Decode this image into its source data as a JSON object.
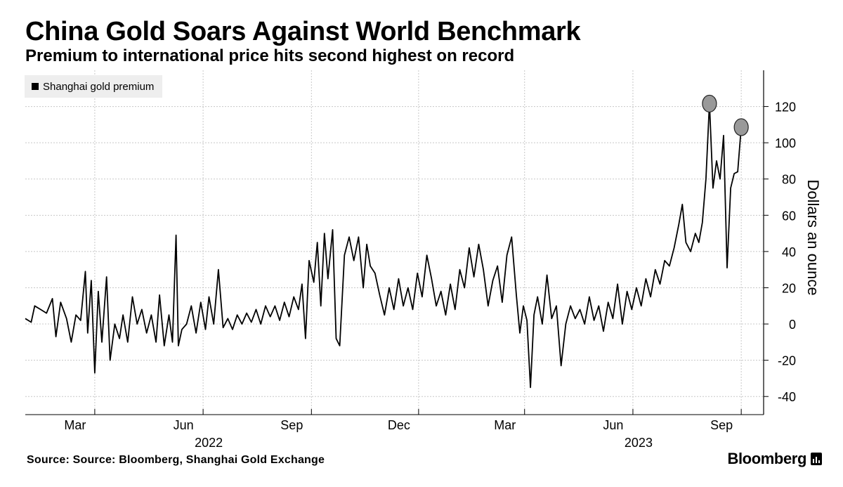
{
  "header": {
    "title": "China Gold Soars Against World Benchmark",
    "subtitle": "Premium to international price hits second highest on record"
  },
  "footer": {
    "source": "Source: Source: Bloomberg, Shanghai Gold Exchange",
    "brand": "Bloomberg"
  },
  "colors": {
    "line": "#000000",
    "grid": "#c8c8c8",
    "highlight_fill": "#999999",
    "legend_bg": "#eeeeee"
  },
  "chart_data": {
    "type": "line",
    "title": "China Gold Soars Against World Benchmark",
    "subtitle": "Premium to international price hits second highest on record",
    "ylabel": "Dollars an ounce",
    "y_axis_side": "right",
    "ylim": [
      -50,
      140
    ],
    "yticks": [
      -40,
      -20,
      0,
      20,
      40,
      60,
      80,
      100,
      120
    ],
    "xlim": [
      "2022-01-01",
      "2023-09-20"
    ],
    "x_month_ticks": [
      {
        "date": "2022-03-01",
        "label": "Mar"
      },
      {
        "date": "2022-06-01",
        "label": "Jun"
      },
      {
        "date": "2022-09-01",
        "label": "Sep"
      },
      {
        "date": "2022-12-01",
        "label": "Dec"
      },
      {
        "date": "2023-03-01",
        "label": "Mar"
      },
      {
        "date": "2023-06-01",
        "label": "Jun"
      },
      {
        "date": "2023-09-01",
        "label": "Sep"
      }
    ],
    "x_year_labels": [
      {
        "date": "2022-06-01",
        "label": "2022"
      },
      {
        "date": "2023-06-01",
        "label": "2023"
      }
    ],
    "grid": true,
    "legend": {
      "position": "top-left",
      "entries": [
        "Shanghai gold premium"
      ]
    },
    "series": [
      {
        "name": "Shanghai gold premium",
        "color": "#000000",
        "points": [
          [
            "2022-01-01",
            3
          ],
          [
            "2022-01-06",
            1
          ],
          [
            "2022-01-09",
            10
          ],
          [
            "2022-01-14",
            8
          ],
          [
            "2022-01-19",
            6
          ],
          [
            "2022-01-24",
            14
          ],
          [
            "2022-01-27",
            -7
          ],
          [
            "2022-01-31",
            12
          ],
          [
            "2022-02-05",
            3
          ],
          [
            "2022-02-09",
            -10
          ],
          [
            "2022-02-13",
            5
          ],
          [
            "2022-02-17",
            2
          ],
          [
            "2022-02-21",
            29
          ],
          [
            "2022-02-23",
            -5
          ],
          [
            "2022-02-26",
            24
          ],
          [
            "2022-03-01",
            -27
          ],
          [
            "2022-03-04",
            18
          ],
          [
            "2022-03-07",
            -10
          ],
          [
            "2022-03-11",
            26
          ],
          [
            "2022-03-14",
            -20
          ],
          [
            "2022-03-18",
            0
          ],
          [
            "2022-03-22",
            -8
          ],
          [
            "2022-03-25",
            5
          ],
          [
            "2022-03-29",
            -10
          ],
          [
            "2022-04-02",
            15
          ],
          [
            "2022-04-06",
            0
          ],
          [
            "2022-04-10",
            8
          ],
          [
            "2022-04-14",
            -5
          ],
          [
            "2022-04-18",
            5
          ],
          [
            "2022-04-22",
            -10
          ],
          [
            "2022-04-25",
            16
          ],
          [
            "2022-04-29",
            -12
          ],
          [
            "2022-05-03",
            5
          ],
          [
            "2022-05-06",
            -10
          ],
          [
            "2022-05-09",
            49
          ],
          [
            "2022-05-11",
            -12
          ],
          [
            "2022-05-14",
            -3
          ],
          [
            "2022-05-18",
            0
          ],
          [
            "2022-05-22",
            10
          ],
          [
            "2022-05-26",
            -5
          ],
          [
            "2022-05-30",
            12
          ],
          [
            "2022-06-03",
            -3
          ],
          [
            "2022-06-06",
            15
          ],
          [
            "2022-06-10",
            0
          ],
          [
            "2022-06-14",
            30
          ],
          [
            "2022-06-18",
            -2
          ],
          [
            "2022-06-22",
            3
          ],
          [
            "2022-06-26",
            -3
          ],
          [
            "2022-06-30",
            5
          ],
          [
            "2022-07-04",
            0
          ],
          [
            "2022-07-08",
            6
          ],
          [
            "2022-07-12",
            1
          ],
          [
            "2022-07-16",
            8
          ],
          [
            "2022-07-20",
            0
          ],
          [
            "2022-07-24",
            10
          ],
          [
            "2022-07-28",
            4
          ],
          [
            "2022-08-01",
            10
          ],
          [
            "2022-08-05",
            2
          ],
          [
            "2022-08-09",
            12
          ],
          [
            "2022-08-13",
            4
          ],
          [
            "2022-08-17",
            15
          ],
          [
            "2022-08-21",
            8
          ],
          [
            "2022-08-24",
            22
          ],
          [
            "2022-08-27",
            -8
          ],
          [
            "2022-08-30",
            35
          ],
          [
            "2022-09-03",
            23
          ],
          [
            "2022-09-06",
            45
          ],
          [
            "2022-09-09",
            10
          ],
          [
            "2022-09-12",
            50
          ],
          [
            "2022-09-15",
            25
          ],
          [
            "2022-09-19",
            52
          ],
          [
            "2022-09-22",
            -8
          ],
          [
            "2022-09-25",
            -12
          ],
          [
            "2022-09-29",
            38
          ],
          [
            "2022-10-03",
            48
          ],
          [
            "2022-10-07",
            35
          ],
          [
            "2022-10-11",
            48
          ],
          [
            "2022-10-15",
            20
          ],
          [
            "2022-10-18",
            44
          ],
          [
            "2022-10-21",
            32
          ],
          [
            "2022-10-25",
            28
          ],
          [
            "2022-10-29",
            16
          ],
          [
            "2022-11-02",
            5
          ],
          [
            "2022-11-06",
            20
          ],
          [
            "2022-11-10",
            8
          ],
          [
            "2022-11-14",
            25
          ],
          [
            "2022-11-18",
            10
          ],
          [
            "2022-11-22",
            20
          ],
          [
            "2022-11-26",
            8
          ],
          [
            "2022-11-30",
            28
          ],
          [
            "2022-12-04",
            15
          ],
          [
            "2022-12-08",
            38
          ],
          [
            "2022-12-12",
            25
          ],
          [
            "2022-12-16",
            10
          ],
          [
            "2022-12-20",
            18
          ],
          [
            "2022-12-24",
            5
          ],
          [
            "2022-12-28",
            22
          ],
          [
            "2023-01-01",
            8
          ],
          [
            "2023-01-05",
            30
          ],
          [
            "2023-01-09",
            20
          ],
          [
            "2023-01-13",
            42
          ],
          [
            "2023-01-17",
            26
          ],
          [
            "2023-01-21",
            44
          ],
          [
            "2023-01-25",
            30
          ],
          [
            "2023-01-29",
            10
          ],
          [
            "2023-02-02",
            24
          ],
          [
            "2023-02-06",
            32
          ],
          [
            "2023-02-10",
            12
          ],
          [
            "2023-02-14",
            38
          ],
          [
            "2023-02-18",
            48
          ],
          [
            "2023-02-22",
            16
          ],
          [
            "2023-02-25",
            -5
          ],
          [
            "2023-02-28",
            10
          ],
          [
            "2023-03-03",
            2
          ],
          [
            "2023-03-06",
            -35
          ],
          [
            "2023-03-09",
            5
          ],
          [
            "2023-03-12",
            15
          ],
          [
            "2023-03-16",
            0
          ],
          [
            "2023-03-20",
            27
          ],
          [
            "2023-03-24",
            3
          ],
          [
            "2023-03-28",
            10
          ],
          [
            "2023-04-01",
            -23
          ],
          [
            "2023-04-05",
            0
          ],
          [
            "2023-04-09",
            10
          ],
          [
            "2023-04-13",
            3
          ],
          [
            "2023-04-17",
            8
          ],
          [
            "2023-04-21",
            0
          ],
          [
            "2023-04-25",
            15
          ],
          [
            "2023-04-29",
            2
          ],
          [
            "2023-05-03",
            10
          ],
          [
            "2023-05-07",
            -4
          ],
          [
            "2023-05-11",
            12
          ],
          [
            "2023-05-15",
            3
          ],
          [
            "2023-05-19",
            22
          ],
          [
            "2023-05-23",
            0
          ],
          [
            "2023-05-27",
            18
          ],
          [
            "2023-05-31",
            8
          ],
          [
            "2023-06-04",
            20
          ],
          [
            "2023-06-08",
            10
          ],
          [
            "2023-06-12",
            25
          ],
          [
            "2023-06-16",
            15
          ],
          [
            "2023-06-20",
            30
          ],
          [
            "2023-06-24",
            22
          ],
          [
            "2023-06-28",
            35
          ],
          [
            "2023-07-02",
            32
          ],
          [
            "2023-07-06",
            42
          ],
          [
            "2023-07-10",
            55
          ],
          [
            "2023-07-13",
            66
          ],
          [
            "2023-07-16",
            45
          ],
          [
            "2023-07-20",
            40
          ],
          [
            "2023-07-24",
            50
          ],
          [
            "2023-07-27",
            45
          ],
          [
            "2023-07-30",
            56
          ],
          [
            "2023-08-02",
            80
          ],
          [
            "2023-08-05",
            122
          ],
          [
            "2023-08-08",
            75
          ],
          [
            "2023-08-11",
            90
          ],
          [
            "2023-08-14",
            80
          ],
          [
            "2023-08-17",
            104
          ],
          [
            "2023-08-20",
            31
          ],
          [
            "2023-08-23",
            75
          ],
          [
            "2023-08-26",
            83
          ],
          [
            "2023-08-29",
            84
          ],
          [
            "2023-09-01",
            109
          ]
        ]
      }
    ],
    "highlights": [
      {
        "date": "2023-08-05",
        "value": 122
      },
      {
        "date": "2023-09-01",
        "value": 109
      }
    ]
  }
}
